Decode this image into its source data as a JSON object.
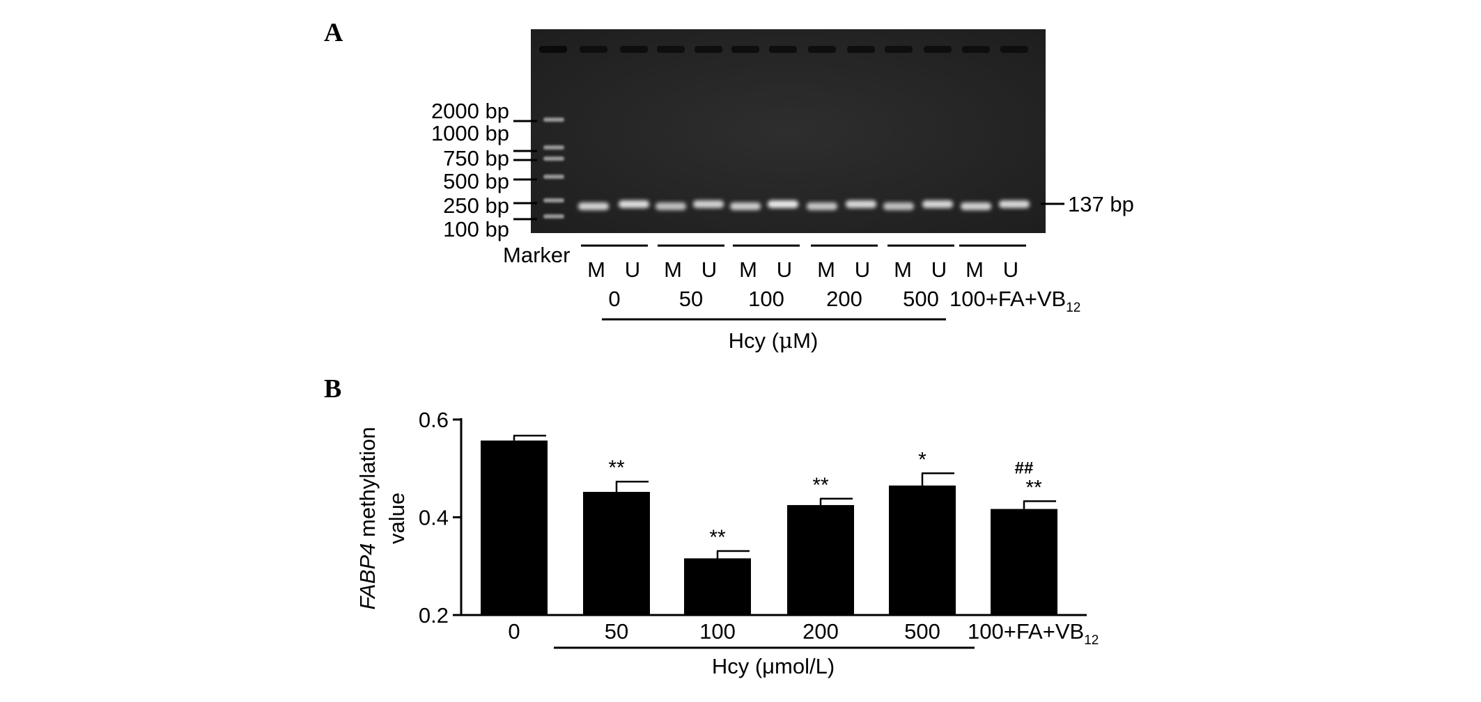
{
  "panel_a": {
    "letter": "A",
    "marker_sizes": [
      "2000 bp",
      "1000 bp",
      "750 bp",
      "500 bp",
      "250 bp",
      "100 bp"
    ],
    "product_label": "137 bp",
    "marker_label": "Marker",
    "lane_pair": [
      "M",
      "U"
    ],
    "groups": [
      "0",
      "50",
      "100",
      "200",
      "500",
      "100+FA+VB"
    ],
    "group_last_subscript": "12",
    "xlabel_prefix": "Hcy (",
    "xlabel_unit": "μ",
    "xlabel_suffix": "M)"
  },
  "panel_b": {
    "letter": "B"
  },
  "chart_data": {
    "type": "bar",
    "categories": [
      "0",
      "50",
      "100",
      "200",
      "500",
      "100+FA+VB12"
    ],
    "category_display": [
      "0",
      "50",
      "100",
      "200",
      "500",
      "100+FA+VB"
    ],
    "last_category_subscript": "12",
    "values": [
      0.557,
      0.452,
      0.316,
      0.425,
      0.465,
      0.417
    ],
    "error_upper": [
      0.567,
      0.473,
      0.331,
      0.438,
      0.49,
      0.433
    ],
    "significance": [
      "",
      "**",
      "**",
      "**",
      "*",
      "**"
    ],
    "significance_hash": [
      "",
      "",
      "",
      "",
      "",
      "##"
    ],
    "ylim": [
      0.2,
      0.6
    ],
    "yticks": [
      "0.2",
      "0.4",
      "0.6"
    ],
    "ylabel_italic": "FABP4",
    "ylabel_rest": " methylation",
    "ylabel_line2": "value",
    "xlabel": "Hcy (μmol/L)",
    "grouped_bracket_categories": [
      "50",
      "100",
      "200",
      "500"
    ],
    "bar_color": "#000000"
  }
}
